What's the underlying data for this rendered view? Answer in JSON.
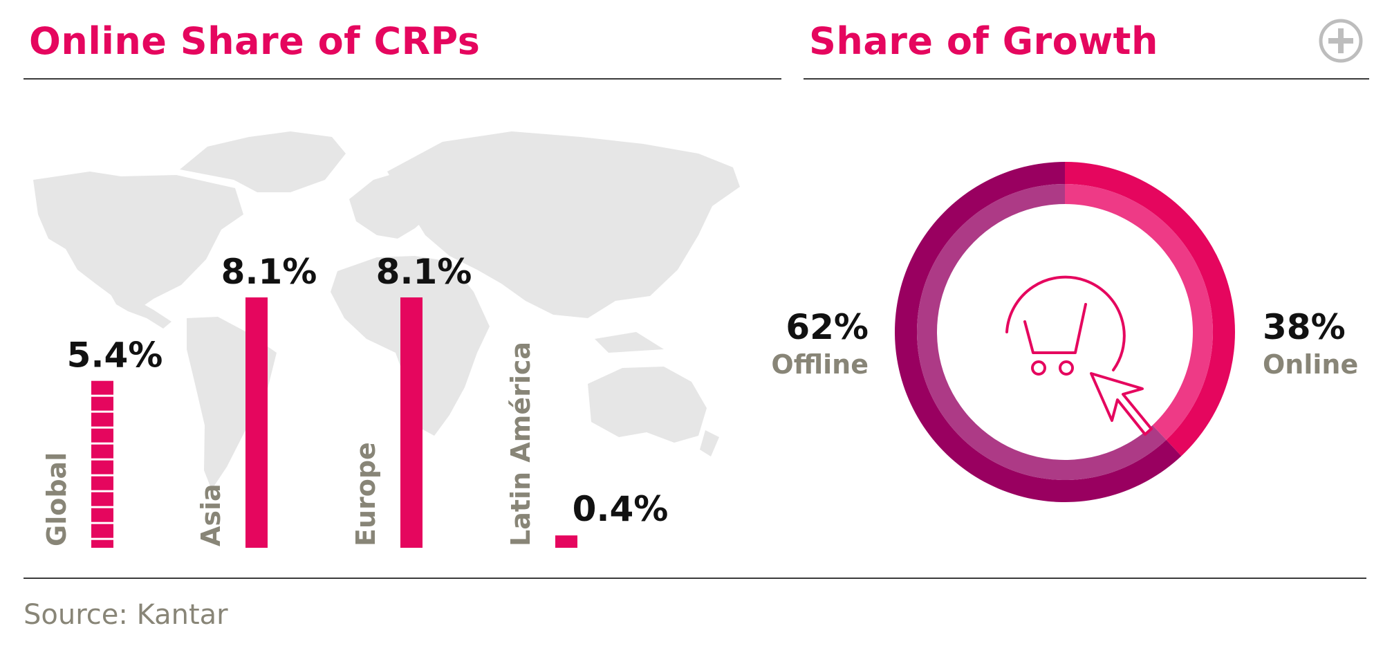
{
  "header": {
    "left_title": "Online Share of CRPs",
    "right_title": "Share of Growth"
  },
  "source": "Source: Kantar",
  "icons": {
    "expand": "plus-circle-icon",
    "center": "shopping-cart-cursor-icon",
    "background": "world-map"
  },
  "colors": {
    "accent": "#e5065e",
    "offline_outer": "#990060",
    "offline_inner": "#ad3a86",
    "online_inner": "#ee3a86",
    "label_gray": "#888577",
    "map_gray": "#e6e6e6"
  },
  "chart_data": [
    {
      "type": "bar",
      "title": "Online Share of CRPs",
      "categories": [
        "Global",
        "Asia",
        "Europe",
        "Latin América"
      ],
      "values": [
        5.4,
        8.1,
        8.1,
        0.4
      ],
      "data_labels": [
        "5.4%",
        "8.1%",
        "8.1%",
        "0.4%"
      ],
      "ylim": [
        0,
        8.1
      ],
      "grid": false,
      "legend": "none"
    },
    {
      "type": "pie",
      "title": "Share of Growth",
      "style": "donut",
      "labels": [
        "Online",
        "Offline"
      ],
      "values": [
        38,
        62
      ],
      "data_labels": [
        "38%",
        "62%"
      ]
    }
  ]
}
